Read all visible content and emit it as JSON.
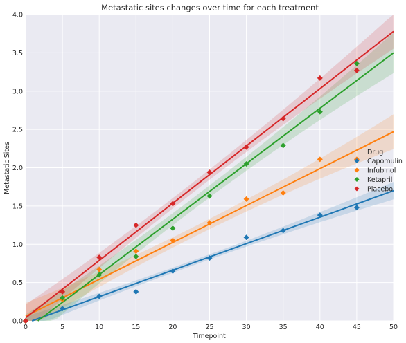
{
  "chart_data": {
    "type": "scatter",
    "title": "Metastatic sites changes over time for each treatment",
    "xlabel": "Timepoint",
    "ylabel": "Metastatic Sites",
    "xlim": [
      0,
      50
    ],
    "ylim": [
      0,
      4.0
    ],
    "xticks": [
      0,
      5,
      10,
      15,
      20,
      25,
      30,
      35,
      40,
      45,
      50
    ],
    "yticks": [
      0.0,
      0.5,
      1.0,
      1.5,
      2.0,
      2.5,
      3.0,
      3.5,
      4.0
    ],
    "grid": true,
    "legend_title": "Drug",
    "legend_position": "right",
    "series": [
      {
        "name": "Capomulin",
        "color": "#1f77b4",
        "x": [
          0,
          5,
          10,
          15,
          20,
          25,
          30,
          35,
          40,
          45
        ],
        "y": [
          0.0,
          0.16,
          0.32,
          0.38,
          0.65,
          0.82,
          1.09,
          1.18,
          1.38,
          1.48
        ],
        "fit": [
          -0.03,
          0.0346
        ],
        "band": 0.06
      },
      {
        "name": "Infubinol",
        "color": "#ff7f0e",
        "x": [
          0,
          5,
          10,
          15,
          20,
          25,
          30,
          35,
          40,
          45
        ],
        "y": [
          0.0,
          0.28,
          0.67,
          0.91,
          1.05,
          1.28,
          1.59,
          1.67,
          2.11,
          2.11
        ],
        "fit": [
          0.06,
          0.0482
        ],
        "band": 0.12
      },
      {
        "name": "Ketapril",
        "color": "#2ca02c",
        "x": [
          0,
          5,
          10,
          15,
          20,
          25,
          30,
          35,
          40,
          45
        ],
        "y": [
          0.0,
          0.3,
          0.6,
          0.84,
          1.21,
          1.63,
          2.05,
          2.29,
          2.73,
          3.36
        ],
        "fit": [
          -0.12,
          0.0724
        ],
        "band": 0.14
      },
      {
        "name": "Placebo",
        "color": "#d62728",
        "x": [
          0,
          5,
          10,
          15,
          20,
          25,
          30,
          35,
          40,
          45
        ],
        "y": [
          0.0,
          0.38,
          0.83,
          1.25,
          1.53,
          1.94,
          2.27,
          2.64,
          3.17,
          3.27
        ],
        "fit": [
          0.04,
          0.0748
        ],
        "band": 0.12
      }
    ]
  }
}
